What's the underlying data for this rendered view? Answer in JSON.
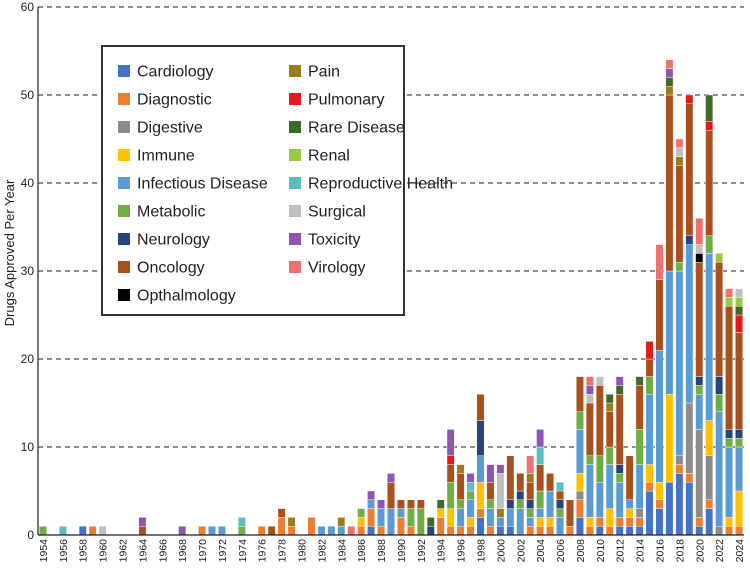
{
  "chart_data": {
    "type": "bar",
    "stacked": true,
    "title": "",
    "xlabel": "",
    "ylabel": "Drugs Approved Per Year",
    "ylim": [
      0,
      60
    ],
    "yticks": [
      0,
      10,
      20,
      30,
      40,
      50,
      60
    ],
    "grid": "horizontal-dashed",
    "legend_position": "top-left",
    "x_tick_labels": [
      "1954",
      "1956",
      "1958",
      "1960",
      "1962",
      "1964",
      "1966",
      "1968",
      "1970",
      "1972",
      "1974",
      "1976",
      "1978",
      "1980",
      "1982",
      "1984",
      "1986",
      "1988",
      "1990",
      "1992",
      "1994",
      "1996",
      "1998",
      "2000",
      "2002",
      "2004",
      "2006",
      "2008",
      "2010",
      "2012",
      "2014",
      "2016",
      "2018",
      "2020",
      "2022",
      "2024"
    ],
    "categories_order": [
      "Cardiology",
      "Diagnostic",
      "Digestive",
      "Immune",
      "Infectious Disease",
      "Metabolic",
      "Neurology",
      "Oncology",
      "Opthalmology",
      "Pain",
      "Pulmonary",
      "Rare Disease",
      "Renal",
      "Reproductive Health",
      "Surgical",
      "Toxicity",
      "Virology"
    ],
    "colors": {
      "Cardiology": "#4472c4",
      "Diagnostic": "#ed7d31",
      "Digestive": "#8c8c8c",
      "Immune": "#ffc000",
      "Infectious Disease": "#5b9bd5",
      "Metabolic": "#70ad47",
      "Neurology": "#264478",
      "Oncology": "#a9501f",
      "Opthalmology": "#000000",
      "Pain": "#9c7a1e",
      "Pulmonary": "#e31a1c",
      "Rare Disease": "#43682b",
      "Renal": "#9bc93c",
      "Reproductive Health": "#5bbcc1",
      "Surgical": "#bfbfbf",
      "Toxicity": "#8e55b4",
      "Virology": "#f07070"
    },
    "years": [
      {
        "year": 1954,
        "counts": {
          "Metabolic": 1
        }
      },
      {
        "year": 1956,
        "counts": {
          "Reproductive Health": 1
        }
      },
      {
        "year": 1958,
        "counts": {
          "Cardiology": 1
        }
      },
      {
        "year": 1959,
        "counts": {
          "Diagnostic": 1
        }
      },
      {
        "year": 1960,
        "counts": {
          "Surgical": 1
        }
      },
      {
        "year": 1964,
        "counts": {
          "Oncology": 1,
          "Toxicity": 1
        }
      },
      {
        "year": 1968,
        "counts": {
          "Toxicity": 1
        }
      },
      {
        "year": 1970,
        "counts": {
          "Diagnostic": 1
        }
      },
      {
        "year": 1971,
        "counts": {
          "Infectious Disease": 1
        }
      },
      {
        "year": 1972,
        "counts": {
          "Infectious Disease": 1
        }
      },
      {
        "year": 1974,
        "counts": {
          "Metabolic": 1,
          "Reproductive Health": 1
        }
      },
      {
        "year": 1976,
        "counts": {
          "Diagnostic": 1
        }
      },
      {
        "year": 1977,
        "counts": {
          "Oncology": 1
        }
      },
      {
        "year": 1978,
        "counts": {
          "Diagnostic": 2,
          "Oncology": 1
        }
      },
      {
        "year": 1979,
        "counts": {
          "Diagnostic": 1,
          "Pain": 1
        }
      },
      {
        "year": 1981,
        "counts": {
          "Diagnostic": 2
        }
      },
      {
        "year": 1982,
        "counts": {
          "Infectious Disease": 1
        }
      },
      {
        "year": 1983,
        "counts": {
          "Infectious Disease": 1
        }
      },
      {
        "year": 1984,
        "counts": {
          "Infectious Disease": 1,
          "Pain": 1
        }
      },
      {
        "year": 1985,
        "counts": {
          "Virology": 1
        }
      },
      {
        "year": 1986,
        "counts": {
          "Metabolic": 1,
          "Immune": 1,
          "Diagnostic": 1
        }
      },
      {
        "year": 1987,
        "counts": {
          "Cardiology": 1,
          "Diagnostic": 2,
          "Infectious Disease": 1,
          "Toxicity": 1
        }
      },
      {
        "year": 1988,
        "counts": {
          "Diagnostic": 1,
          "Infectious Disease": 2,
          "Toxicity": 1
        }
      },
      {
        "year": 1989,
        "counts": {
          "Infectious Disease": 3,
          "Oncology": 3,
          "Toxicity": 1
        }
      },
      {
        "year": 1990,
        "counts": {
          "Diagnostic": 2,
          "Infectious Disease": 1,
          "Oncology": 1
        }
      },
      {
        "year": 1991,
        "counts": {
          "Diagnostic": 1,
          "Metabolic": 2,
          "Oncology": 1
        }
      },
      {
        "year": 1992,
        "counts": {
          "Metabolic": 3,
          "Oncology": 1
        }
      },
      {
        "year": 1993,
        "counts": {
          "Rare Disease": 1,
          "Neurology": 1
        }
      },
      {
        "year": 1994,
        "counts": {
          "Diagnostic": 2,
          "Immune": 1,
          "Rare Disease": 1
        }
      },
      {
        "year": 1995,
        "counts": {
          "Diagnostic": 1,
          "Immune": 2,
          "Metabolic": 3,
          "Oncology": 2,
          "Pulmonary": 1,
          "Toxicity": 3
        }
      },
      {
        "year": 1996,
        "counts": {
          "Diagnostic": 1,
          "Infectious Disease": 2,
          "Metabolic": 1,
          "Oncology": 3,
          "Pain": 1
        }
      },
      {
        "year": 1997,
        "counts": {
          "Diagnostic": 1,
          "Immune": 1,
          "Infectious Disease": 2,
          "Metabolic": 1,
          "Reproductive Health": 1,
          "Toxicity": 1
        }
      },
      {
        "year": 1998,
        "counts": {
          "Cardiology": 2,
          "Diagnostic": 1,
          "Immune": 3,
          "Infectious Disease": 3,
          "Neurology": 4,
          "Oncology": 3
        }
      },
      {
        "year": 1999,
        "counts": {
          "Diagnostic": 1,
          "Infectious Disease": 2,
          "Metabolic": 1,
          "Oncology": 2,
          "Toxicity": 2
        }
      },
      {
        "year": 2000,
        "counts": {
          "Cardiology": 1,
          "Infectious Disease": 1,
          "Surgical": 4,
          "Toxicity": 1,
          "Pain": 1
        }
      },
      {
        "year": 2001,
        "counts": {
          "Cardiology": 1,
          "Infectious Disease": 2,
          "Neurology": 1,
          "Oncology": 5
        }
      },
      {
        "year": 2002,
        "counts": {
          "Infectious Disease": 3,
          "Metabolic": 1,
          "Neurology": 1,
          "Oncology": 2
        }
      },
      {
        "year": 2003,
        "counts": {
          "Diagnostic": 1,
          "Infectious Disease": 1,
          "Oncology": 2,
          "Pain": 1,
          "Metabolic": 1,
          "Neurology": 1,
          "Virology": 2
        }
      },
      {
        "year": 2004,
        "counts": {
          "Diagnostic": 1,
          "Immune": 1,
          "Infectious Disease": 1,
          "Metabolic": 2,
          "Oncology": 3,
          "Reproductive Health": 2,
          "Toxicity": 2
        }
      },
      {
        "year": 2005,
        "counts": {
          "Immune": 1,
          "Diagnostic": 1,
          "Infectious Disease": 3,
          "Oncology": 2
        }
      },
      {
        "year": 2006,
        "counts": {
          "Metabolic": 1,
          "Neurology": 1,
          "Reproductive Health": 1,
          "Infectious Disease": 2,
          "Oncology": 1
        }
      },
      {
        "year": 2007,
        "counts": {
          "Diagnostic": 1,
          "Oncology": 3
        }
      },
      {
        "year": 2008,
        "counts": {
          "Cardiology": 2,
          "Diagnostic": 2,
          "Digestive": 1,
          "Immune": 2,
          "Infectious Disease": 5,
          "Metabolic": 2,
          "Oncology": 4
        }
      },
      {
        "year": 2009,
        "counts": {
          "Diagnostic": 1,
          "Immune": 1,
          "Infectious Disease": 6,
          "Metabolic": 1,
          "Oncology": 6,
          "Surgical": 1,
          "Toxicity": 1,
          "Virology": 1
        }
      },
      {
        "year": 2010,
        "counts": {
          "Cardiology": 1,
          "Diagnostic": 1,
          "Infectious Disease": 4,
          "Metabolic": 3,
          "Oncology": 8,
          "Surgical": 1
        }
      },
      {
        "year": 2011,
        "counts": {
          "Diagnostic": 1,
          "Immune": 2,
          "Infectious Disease": 5,
          "Metabolic": 2,
          "Oncology": 4,
          "Rare Disease": 1,
          "Pain": 1
        }
      },
      {
        "year": 2012,
        "counts": {
          "Cardiology": 1,
          "Diagnostic": 1,
          "Infectious Disease": 4,
          "Metabolic": 1,
          "Neurology": 1,
          "Oncology": 8,
          "Rare Disease": 1,
          "Toxicity": 1
        }
      },
      {
        "year": 2013,
        "counts": {
          "Cardiology": 1,
          "Diagnostic": 1,
          "Immune": 1,
          "Infectious Disease": 1,
          "Oncology": 5
        }
      },
      {
        "year": 2014,
        "counts": {
          "Cardiology": 1,
          "Diagnostic": 1,
          "Digestive": 1,
          "Infectious Disease": 5,
          "Metabolic": 4,
          "Oncology": 5,
          "Rare Disease": 1
        }
      },
      {
        "year": 2015,
        "counts": {
          "Cardiology": 5,
          "Diagnostic": 1,
          "Immune": 2,
          "Infectious Disease": 8,
          "Metabolic": 2,
          "Oncology": 2,
          "Pulmonary": 2
        }
      },
      {
        "year": 2016,
        "counts": {
          "Cardiology": 3,
          "Diagnostic": 1,
          "Immune": 2,
          "Infectious Disease": 15,
          "Oncology": 8,
          "Virology": 4
        }
      },
      {
        "year": 2017,
        "counts": {
          "Cardiology": 6,
          "Immune": 10,
          "Infectious Disease": 14,
          "Oncology": 20,
          "Pain": 1,
          "Rare Disease": 1,
          "Toxicity": 1,
          "Virology": 1
        }
      },
      {
        "year": 2018,
        "counts": {
          "Cardiology": 7,
          "Diagnostic": 1,
          "Digestive": 1,
          "Infectious Disease": 21,
          "Metabolic": 1,
          "Oncology": 11,
          "Pain": 1,
          "Surgical": 1,
          "Virology": 1
        }
      },
      {
        "year": 2019,
        "counts": {
          "Cardiology": 6,
          "Diagnostic": 1,
          "Digestive": 8,
          "Infectious Disease": 18,
          "Neurology": 1,
          "Oncology": 15,
          "Pulmonary": 1
        }
      },
      {
        "year": 2020,
        "counts": {
          "Cardiology": 1,
          "Diagnostic": 1,
          "Digestive": 10,
          "Infectious Disease": 4,
          "Neurology": 1,
          "Opthalmology": 1,
          "Oncology": 13,
          "Metabolic": 1,
          "Surgical": 1,
          "Virology": 3
        }
      },
      {
        "year": 2021,
        "counts": {
          "Cardiology": 3,
          "Diagnostic": 1,
          "Digestive": 5,
          "Immune": 4,
          "Infectious Disease": 19,
          "Metabolic": 2,
          "Oncology": 12,
          "Pulmonary": 1,
          "Rare Disease": 3
        }
      },
      {
        "year": 2022,
        "counts": {
          "Digestive": 1,
          "Infectious Disease": 13,
          "Neurology": 2,
          "Oncology": 13,
          "Metabolic": 2,
          "Renal": 1
        }
      },
      {
        "year": 2023,
        "counts": {
          "Diagnostic": 1,
          "Immune": 1,
          "Infectious Disease": 8,
          "Neurology": 1,
          "Oncology": 14,
          "Metabolic": 1,
          "Renal": 1,
          "Virology": 1
        }
      },
      {
        "year": 2024,
        "counts": {
          "Diagnostic": 1,
          "Immune": 4,
          "Infectious Disease": 5,
          "Neurology": 1,
          "Oncology": 11,
          "Metabolic": 1,
          "Pulmonary": 2,
          "Rare Disease": 1,
          "Renal": 1,
          "Surgical": 1
        }
      }
    ]
  }
}
